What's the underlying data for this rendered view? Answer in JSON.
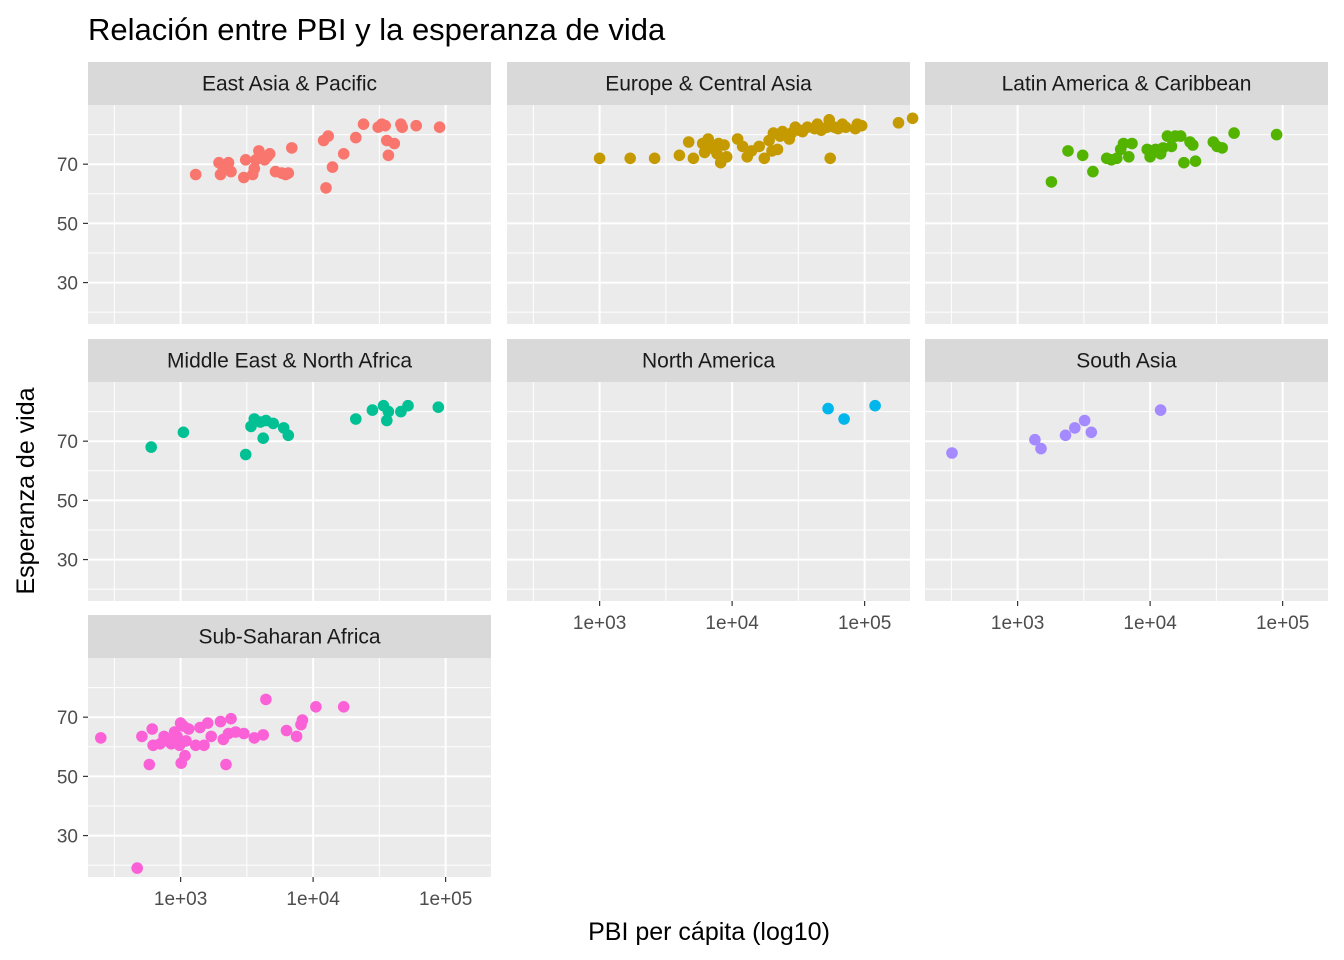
{
  "chart_data": {
    "type": "scatter",
    "title": "Relación entre  PBI y la esperanza de vida",
    "xlabel": "PBI per cápita (log10)",
    "ylabel": "Esperanza de vida",
    "x_scale": "log10",
    "xlim": [
      200,
      220000
    ],
    "ylim": [
      16,
      90
    ],
    "x_ticks": [
      1000,
      10000,
      100000
    ],
    "x_tick_labels": [
      "1e+03",
      "1e+04",
      "1e+05"
    ],
    "y_ticks": [
      30,
      50,
      70
    ],
    "y_tick_labels": [
      "30",
      "50",
      "70"
    ],
    "grid": true,
    "legend": "none",
    "facets": [
      {
        "name": "East Asia & Pacific",
        "color": "#F8766D",
        "points": [
          [
            1300,
            66.5
          ],
          [
            1950,
            70.5
          ],
          [
            2000,
            66.5
          ],
          [
            2100,
            68.5
          ],
          [
            2300,
            70.5
          ],
          [
            2400,
            67.5
          ],
          [
            3000,
            65.5
          ],
          [
            3100,
            71.5
          ],
          [
            3500,
            66.5
          ],
          [
            3600,
            68.5
          ],
          [
            3700,
            71.5
          ],
          [
            3900,
            74.5
          ],
          [
            4300,
            71.5
          ],
          [
            4500,
            72.5
          ],
          [
            4700,
            73.5
          ],
          [
            5200,
            67.5
          ],
          [
            5800,
            67
          ],
          [
            6200,
            66.5
          ],
          [
            6500,
            67
          ],
          [
            6900,
            75.5
          ],
          [
            12000,
            78
          ],
          [
            12500,
            62
          ],
          [
            13000,
            79.5
          ],
          [
            14000,
            69
          ],
          [
            17000,
            73.5
          ],
          [
            21000,
            79
          ],
          [
            24000,
            83.5
          ],
          [
            31000,
            82.5
          ],
          [
            33000,
            83.5
          ],
          [
            35000,
            83
          ],
          [
            36000,
            78
          ],
          [
            37000,
            73
          ],
          [
            41000,
            77
          ],
          [
            46000,
            83.5
          ],
          [
            47000,
            82.5
          ],
          [
            60000,
            83
          ],
          [
            90000,
            82.5
          ]
        ]
      },
      {
        "name": "Europe & Central Asia",
        "color": "#C49A00",
        "points": [
          [
            1000,
            72
          ],
          [
            1700,
            72
          ],
          [
            2600,
            72
          ],
          [
            4000,
            73
          ],
          [
            4700,
            77.5
          ],
          [
            5100,
            72
          ],
          [
            6000,
            77
          ],
          [
            6200,
            74
          ],
          [
            6600,
            78.5
          ],
          [
            7000,
            75.5
          ],
          [
            7400,
            75
          ],
          [
            7700,
            73.5
          ],
          [
            7900,
            77
          ],
          [
            8200,
            70.5
          ],
          [
            8700,
            76.5
          ],
          [
            9100,
            72.5
          ],
          [
            11000,
            78.5
          ],
          [
            12000,
            76
          ],
          [
            13000,
            72.5
          ],
          [
            14000,
            74.5
          ],
          [
            16000,
            76
          ],
          [
            17500,
            72
          ],
          [
            19000,
            78
          ],
          [
            20000,
            74.5
          ],
          [
            20500,
            80.5
          ],
          [
            22000,
            75
          ],
          [
            23000,
            79.5
          ],
          [
            24000,
            81
          ],
          [
            27000,
            78.5
          ],
          [
            28000,
            80.5
          ],
          [
            30000,
            82.5
          ],
          [
            32000,
            81.5
          ],
          [
            34000,
            81
          ],
          [
            37000,
            82.5
          ],
          [
            42000,
            82
          ],
          [
            44000,
            83.5
          ],
          [
            47000,
            81.5
          ],
          [
            52000,
            82.5
          ],
          [
            54000,
            85
          ],
          [
            55000,
            72
          ],
          [
            59000,
            82.5
          ],
          [
            63000,
            82
          ],
          [
            68000,
            83.5
          ],
          [
            72000,
            82.5
          ],
          [
            85000,
            82
          ],
          [
            88000,
            83.5
          ],
          [
            95000,
            83
          ],
          [
            180000,
            84
          ],
          [
            230000,
            85.5
          ]
        ]
      },
      {
        "name": "Latin America & Caribbean",
        "color": "#53B400",
        "points": [
          [
            1800,
            64
          ],
          [
            2400,
            74.5
          ],
          [
            3100,
            73
          ],
          [
            3700,
            67.5
          ],
          [
            4700,
            72
          ],
          [
            5100,
            71.5
          ],
          [
            5600,
            72
          ],
          [
            6000,
            75
          ],
          [
            6300,
            77
          ],
          [
            6900,
            72.5
          ],
          [
            7300,
            77
          ],
          [
            9500,
            75
          ],
          [
            10000,
            72.5
          ],
          [
            10400,
            74.5
          ],
          [
            11000,
            75
          ],
          [
            12000,
            73.5
          ],
          [
            12500,
            75.5
          ],
          [
            13500,
            79.5
          ],
          [
            14500,
            76
          ],
          [
            15500,
            79.5
          ],
          [
            17000,
            79.5
          ],
          [
            18000,
            70.5
          ],
          [
            20000,
            77.5
          ],
          [
            21000,
            76.5
          ],
          [
            22000,
            71
          ],
          [
            30000,
            77.5
          ],
          [
            32000,
            76
          ],
          [
            35000,
            75.5
          ],
          [
            43000,
            80.5
          ],
          [
            90000,
            80
          ]
        ]
      },
      {
        "name": "Middle East & North Africa",
        "color": "#00C094",
        "points": [
          [
            600,
            68
          ],
          [
            1050,
            73
          ],
          [
            3100,
            65.5
          ],
          [
            3400,
            75
          ],
          [
            3600,
            77.5
          ],
          [
            4000,
            76.5
          ],
          [
            4200,
            71
          ],
          [
            4400,
            77
          ],
          [
            5000,
            76
          ],
          [
            6000,
            74.5
          ],
          [
            6500,
            72
          ],
          [
            21000,
            77.5
          ],
          [
            28000,
            80.5
          ],
          [
            34000,
            82
          ],
          [
            36000,
            77
          ],
          [
            37000,
            80
          ],
          [
            46000,
            80
          ],
          [
            52000,
            82
          ],
          [
            88000,
            81.5
          ]
        ]
      },
      {
        "name": "North America",
        "color": "#00B6EB",
        "points": [
          [
            53000,
            81
          ],
          [
            70000,
            77.5
          ],
          [
            120000,
            82
          ]
        ]
      },
      {
        "name": "South Asia",
        "color": "#A58AFF",
        "points": [
          [
            320,
            66
          ],
          [
            1350,
            70.5
          ],
          [
            1500,
            67.5
          ],
          [
            2300,
            72
          ],
          [
            2700,
            74.5
          ],
          [
            3200,
            77
          ],
          [
            3600,
            73
          ],
          [
            12000,
            80.5
          ]
        ]
      },
      {
        "name": "Sub-Saharan Africa",
        "color": "#FB61D7",
        "points": [
          [
            250,
            63
          ],
          [
            470,
            19
          ],
          [
            510,
            63.5
          ],
          [
            580,
            54
          ],
          [
            610,
            66
          ],
          [
            620,
            60.5
          ],
          [
            700,
            61
          ],
          [
            750,
            63.5
          ],
          [
            800,
            62
          ],
          [
            850,
            61
          ],
          [
            900,
            65
          ],
          [
            940,
            63.5
          ],
          [
            980,
            60.5
          ],
          [
            1000,
            68
          ],
          [
            1010,
            54.5
          ],
          [
            1050,
            67
          ],
          [
            1080,
            57
          ],
          [
            1100,
            62
          ],
          [
            1150,
            66
          ],
          [
            1300,
            60.5
          ],
          [
            1400,
            66.5
          ],
          [
            1500,
            60.5
          ],
          [
            1600,
            68
          ],
          [
            1700,
            63.5
          ],
          [
            2000,
            68.5
          ],
          [
            2100,
            62.5
          ],
          [
            2200,
            54
          ],
          [
            2300,
            64.5
          ],
          [
            2400,
            69.5
          ],
          [
            2600,
            65
          ],
          [
            3000,
            64.5
          ],
          [
            3600,
            63
          ],
          [
            4200,
            64
          ],
          [
            4400,
            76
          ],
          [
            6300,
            65.5
          ],
          [
            7500,
            63.5
          ],
          [
            8100,
            67.5
          ],
          [
            8300,
            69
          ],
          [
            10500,
            73.5
          ],
          [
            17000,
            73.5
          ]
        ]
      }
    ]
  }
}
